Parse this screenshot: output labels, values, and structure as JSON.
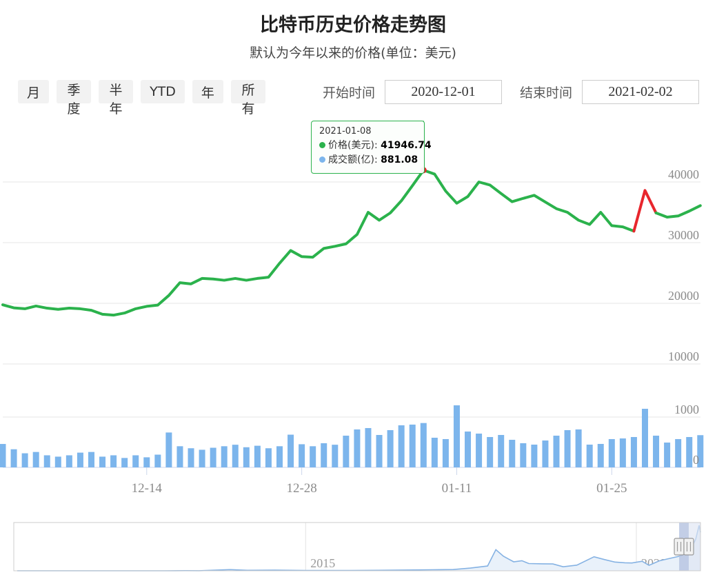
{
  "header": {
    "title": "比特币历史价格走势图",
    "subtitle": "默认为今年以来的价格(单位：美元)"
  },
  "controls": {
    "range_buttons": [
      "月",
      "季度",
      "半年",
      "YTD",
      "年",
      "所有"
    ],
    "start_label": "开始时间",
    "start_value": "2020-12-01",
    "end_label": "结束时间",
    "end_value": "2021-02-02"
  },
  "tooltip": {
    "date": "2021-01-08",
    "series": [
      {
        "name": "价格(美元)",
        "value": "41946.74",
        "color": "#2bb24c"
      },
      {
        "name": "成交额(亿)",
        "value": "881.08",
        "color": "#7cb5ec"
      }
    ]
  },
  "chart_data": {
    "type": "line+bar",
    "title": "比特币历史价格走势图",
    "start_date": "2020-12-01",
    "end_date": "2021-02-02",
    "x_tick_labels": [
      "12-14",
      "12-28",
      "01-11",
      "01-25"
    ],
    "x_tick_indices": [
      13,
      27,
      41,
      55
    ],
    "price_series": {
      "name": "价格(美元)",
      "type": "line",
      "color": "#2bb24c",
      "ylim": [
        5000,
        45000
      ],
      "y_ticks": [
        40000,
        30000,
        20000,
        10000
      ],
      "hover_index": 38,
      "hover_value": 41946.74,
      "red_segment_range": [
        57,
        59
      ],
      "values": [
        19750,
        19250,
        19100,
        19550,
        19200,
        19000,
        19200,
        19100,
        18850,
        18200,
        18050,
        18400,
        19100,
        19500,
        19700,
        21300,
        23400,
        23200,
        24100,
        24000,
        23800,
        24100,
        23800,
        24100,
        24300,
        26600,
        28700,
        27700,
        27600,
        29050,
        29400,
        29800,
        31350,
        35000,
        33700,
        34900,
        36900,
        39400,
        41946.74,
        41300,
        38500,
        36500,
        37600,
        40000,
        39500,
        38100,
        36750,
        37300,
        37800,
        36700,
        35600,
        35000,
        33700,
        33000,
        35000,
        32800,
        32600,
        31900,
        38600,
        34900,
        34200,
        34400,
        35200,
        36100
      ]
    },
    "volume_series": {
      "name": "成交额(亿)",
      "type": "bar",
      "color": "#7cb5ec",
      "ylim": [
        0,
        1400
      ],
      "y_ticks": [
        1000,
        0
      ],
      "values": [
        465,
        360,
        280,
        306,
        240,
        213,
        240,
        293,
        306,
        213,
        240,
        187,
        240,
        200,
        253,
        693,
        420,
        380,
        350,
        390,
        420,
        450,
        400,
        430,
        380,
        420,
        650,
        460,
        420,
        480,
        450,
        630,
        754,
        781,
        644,
        740,
        836,
        850,
        881.08,
        589,
        562,
        1233,
        712,
        671,
        603,
        644,
        548,
        480,
        452,
        534,
        630,
        740,
        754,
        452,
        466,
        562,
        575,
        603,
        1164,
        630,
        493,
        562,
        603,
        640
      ]
    }
  },
  "navigator": {
    "year_labels": [
      {
        "label": "2015",
        "f": 0.425
      },
      {
        "label": "2020",
        "f": 0.9066
      }
    ],
    "selection": {
      "from_f": 0.9689,
      "to_f": 0.9829
    },
    "series": [
      [
        0.005,
        5
      ],
      [
        0.08,
        10
      ],
      [
        0.13,
        13
      ],
      [
        0.22,
        15
      ],
      [
        0.25,
        120
      ],
      [
        0.27,
        80
      ],
      [
        0.315,
        1050
      ],
      [
        0.34,
        430
      ],
      [
        0.38,
        580
      ],
      [
        0.425,
        230
      ],
      [
        0.48,
        270
      ],
      [
        0.53,
        430
      ],
      [
        0.57,
        680
      ],
      [
        0.61,
        970
      ],
      [
        0.64,
        1150
      ],
      [
        0.665,
        2500
      ],
      [
        0.69,
        4400
      ],
      [
        0.702,
        19500
      ],
      [
        0.713,
        13500
      ],
      [
        0.72,
        11000
      ],
      [
        0.728,
        8300
      ],
      [
        0.74,
        9300
      ],
      [
        0.75,
        6700
      ],
      [
        0.77,
        6400
      ],
      [
        0.785,
        6300
      ],
      [
        0.8,
        3700
      ],
      [
        0.82,
        5200
      ],
      [
        0.845,
        12900
      ],
      [
        0.86,
        10400
      ],
      [
        0.875,
        8100
      ],
      [
        0.89,
        7400
      ],
      [
        0.9,
        7200
      ],
      [
        0.915,
        8800
      ],
      [
        0.925,
        5000
      ],
      [
        0.94,
        9150
      ],
      [
        0.955,
        11400
      ],
      [
        0.972,
        13800
      ],
      [
        0.985,
        19000
      ],
      [
        0.993,
        29000
      ],
      [
        0.998,
        41900
      ],
      [
        1.0,
        35500
      ]
    ]
  },
  "colors": {
    "price_line": "#2bb24c",
    "price_highlight": "#e8262d",
    "volume_bar": "#7cb5ec",
    "grid": "#e6e6e6",
    "axis_line": "#ccd6eb",
    "axis_label": "#8b8b8b",
    "nav_line": "#85b2e3",
    "nav_fill": "#e9f1fa",
    "nav_band": "#b9c6e2",
    "nav_side_mask": "#dfe5f2",
    "nav_border": "#cccccc",
    "handle_fill": "#f2f2f2",
    "handle_border": "#999999"
  }
}
